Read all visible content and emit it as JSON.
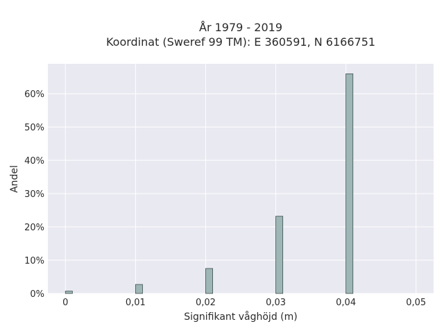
{
  "chart_data": {
    "type": "bar",
    "title_lines": [
      "År 1979 - 2019",
      "Koordinat (Sweref 99 TM): E 360591, N 6166751"
    ],
    "xlabel": "Signifikant våghöjd (m)",
    "ylabel": "Andel",
    "x_ticks": [
      0,
      0.01,
      0.02,
      0.03,
      0.04,
      0.05
    ],
    "x_tick_labels": [
      "0",
      "0,01",
      "0,02",
      "0,03",
      "0,04",
      "0,05"
    ],
    "y_ticks": [
      0,
      10,
      20,
      30,
      40,
      50,
      60
    ],
    "y_tick_labels": [
      "0%",
      "10%",
      "20%",
      "30%",
      "40%",
      "50%",
      "60%"
    ],
    "xlim": [
      -0.0025,
      0.0525
    ],
    "ylim": [
      0,
      69
    ],
    "bin_width": 0.001,
    "bars": [
      {
        "x": 0.0005,
        "value": 0.7
      },
      {
        "x": 0.0105,
        "value": 2.7
      },
      {
        "x": 0.0205,
        "value": 7.5
      },
      {
        "x": 0.0305,
        "value": 23.2
      },
      {
        "x": 0.0405,
        "value": 66.0
      }
    ],
    "grid": true,
    "colors": {
      "bar_fill": "#9fb6b6",
      "bar_stroke": "#3d4f4f",
      "plot_bg": "#e9e9f1",
      "grid": "#ffffff"
    }
  }
}
